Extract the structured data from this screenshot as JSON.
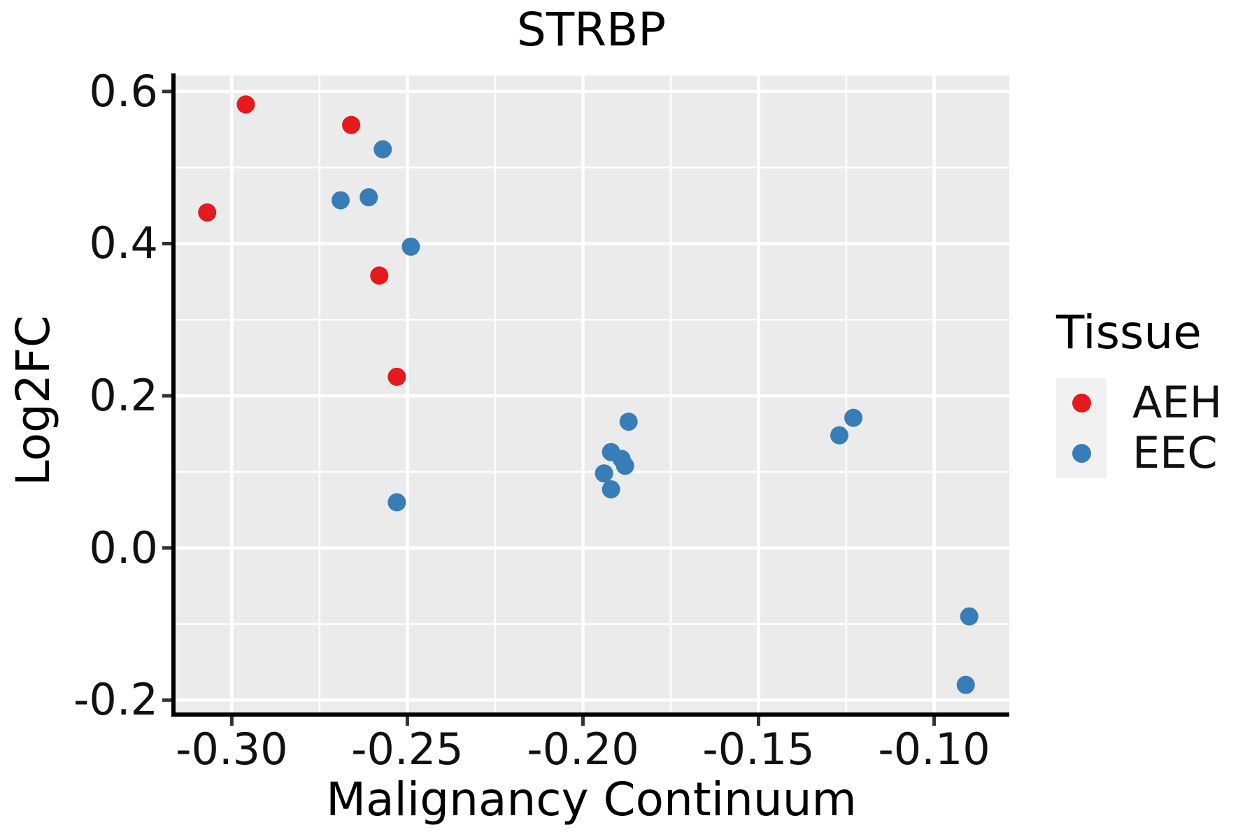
{
  "chart_data": {
    "type": "scatter",
    "title": "STRBP",
    "xlabel": "Malignancy Continuum",
    "ylabel": "Log2FC",
    "grid": true,
    "panel_bg": "#EBEBEB",
    "gridline_color": "#FFFFFF",
    "axis_line_color": "#000000",
    "tick_color": "#333333",
    "point_radius": 13,
    "xlim": [
      -0.3166,
      -0.0786
    ],
    "ylim": [
      -0.219,
      0.621
    ],
    "x_ticks": {
      "values": [
        -0.3,
        -0.25,
        -0.2,
        -0.15,
        -0.1
      ],
      "labels": [
        "-0.30",
        "-0.25",
        "-0.20",
        "-0.15",
        "-0.10"
      ]
    },
    "x_minor": [
      -0.275,
      -0.225,
      -0.175,
      -0.125
    ],
    "y_ticks": {
      "values": [
        0.6,
        0.4,
        0.2,
        0.0,
        -0.2
      ],
      "labels": [
        "0.6",
        "0.4",
        "0.2",
        "0.0",
        "-0.2"
      ]
    },
    "y_minor": [
      0.5,
      0.3,
      0.1,
      -0.1
    ],
    "legend": {
      "title": "Tissue",
      "position": "right",
      "items": [
        {
          "label": "AEH",
          "color": "#E41A1C"
        },
        {
          "label": "EEC",
          "color": "#377EB8"
        }
      ]
    },
    "series": [
      {
        "name": "AEH",
        "color": "#E41A1C",
        "points": [
          [
            -0.296,
            0.583
          ],
          [
            -0.266,
            0.556
          ],
          [
            -0.307,
            0.441
          ],
          [
            -0.258,
            0.358
          ],
          [
            -0.253,
            0.225
          ]
        ]
      },
      {
        "name": "EEC",
        "color": "#377EB8",
        "points": [
          [
            -0.257,
            0.524
          ],
          [
            -0.269,
            0.457
          ],
          [
            -0.261,
            0.461
          ],
          [
            -0.249,
            0.396
          ],
          [
            -0.253,
            0.06
          ],
          [
            -0.187,
            0.166
          ],
          [
            -0.192,
            0.126
          ],
          [
            -0.189,
            0.117
          ],
          [
            -0.188,
            0.108
          ],
          [
            -0.194,
            0.098
          ],
          [
            -0.192,
            0.077
          ],
          [
            -0.123,
            0.171
          ],
          [
            -0.127,
            0.148
          ],
          [
            -0.09,
            -0.09
          ],
          [
            -0.091,
            -0.18
          ]
        ]
      }
    ]
  }
}
